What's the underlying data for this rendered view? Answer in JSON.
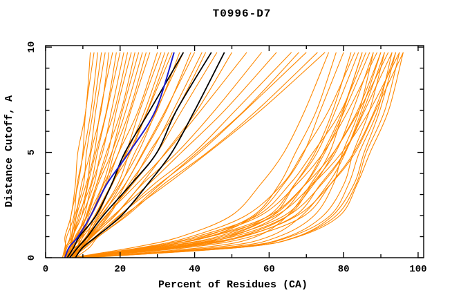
{
  "window": {
    "title": "T0996-D7"
  },
  "colors": {
    "background": "#ffffff",
    "axis": "#000000",
    "orange_curve": "#ff8800",
    "black_curve": "#000000",
    "blue_curve": "#1a1acc"
  },
  "chart_data": {
    "type": "line",
    "title": "T0996-D7",
    "xlabel": "Percent of Residues (CA)",
    "ylabel": "Distance Cutoff, A",
    "xlim": [
      0,
      101.5
    ],
    "ylim": [
      0,
      10.07
    ],
    "grid": false,
    "legend": "none",
    "x_major_ticks": [
      0,
      20,
      40,
      60,
      80,
      100
    ],
    "x_minor_ticks": [
      10,
      30,
      50,
      70,
      90
    ],
    "x_tick_labels": [
      "0",
      "20",
      "40",
      "60",
      "80",
      "100"
    ],
    "y_major_ticks": [
      0,
      5,
      10
    ],
    "y_minor_ticks": [
      1,
      2,
      3,
      4,
      6,
      7,
      8,
      9
    ],
    "y_tick_labels": [
      "0",
      "5",
      "10"
    ],
    "cutoffs": [
      0,
      0.5,
      1,
      2,
      3.5,
      5,
      7,
      9.75
    ],
    "blue_curve": [
      5.2,
      6.8,
      8.6,
      11.8,
      17,
      22,
      29.5,
      34.5
    ],
    "black_curves": [
      [
        5.8,
        7.5,
        9.5,
        13,
        18,
        21.5,
        27.5,
        37
      ],
      [
        6.5,
        8.5,
        11,
        16,
        22.5,
        30,
        35.5,
        44.5
      ],
      [
        8,
        10.5,
        13.5,
        20,
        28,
        33.5,
        40,
        48
      ]
    ],
    "orange_curves": [
      [
        4.5,
        5.1,
        5.6,
        6.6,
        7.9,
        9.0,
        10.4,
        12
      ],
      [
        5,
        5.6,
        6.2,
        7.2,
        8.6,
        9.8,
        11.2,
        13
      ],
      [
        4.5,
        5.3,
        5.9,
        7.2,
        8.8,
        10.2,
        11.9,
        14
      ],
      [
        5.5,
        6.3,
        6.9,
        8.2,
        9.8,
        11.2,
        12.9,
        15
      ],
      [
        5,
        5.9,
        6.7,
        8.1,
        10,
        11.6,
        13.6,
        16
      ],
      [
        6,
        6.9,
        7.7,
        9.1,
        11,
        12.6,
        14.6,
        17
      ],
      [
        5,
        6,
        7,
        8.6,
        10.9,
        12.8,
        15.1,
        18
      ],
      [
        5.5,
        6.6,
        7.5,
        9.3,
        11.6,
        13.6,
        16,
        19
      ],
      [
        5,
        6.2,
        7.3,
        9.2,
        11.8,
        14,
        16.7,
        20
      ],
      [
        6,
        7.2,
        8.3,
        10.2,
        12.8,
        15,
        17.7,
        21
      ],
      [
        5,
        6.4,
        7.6,
        9.8,
        12.7,
        15.2,
        18.3,
        22
      ],
      [
        6.5,
        7.8,
        9,
        11.1,
        13.9,
        16.4,
        19.4,
        23
      ],
      [
        5.5,
        7,
        8.3,
        10.7,
        13.8,
        16.6,
        19.9,
        24
      ],
      [
        7,
        8.4,
        9.7,
        12,
        15.1,
        17.8,
        21,
        25
      ],
      [
        5,
        6.7,
        8.2,
        10.9,
        14.5,
        17.6,
        21.4,
        26
      ],
      [
        6.5,
        8.1,
        9.6,
        12.2,
        15.7,
        18.8,
        22.5,
        27
      ],
      [
        6,
        7.8,
        9.3,
        12.2,
        15.9,
        19.2,
        23.2,
        28
      ],
      [
        5,
        7,
        8.8,
        12,
        16.3,
        20,
        24.5,
        30
      ],
      [
        7,
        8.9,
        10.6,
        13.7,
        17.8,
        21.4,
        25.7,
        31
      ],
      [
        6.5,
        8.5,
        10.3,
        13.6,
        18,
        21.8,
        26.4,
        32
      ],
      [
        7.5,
        9.5,
        11.3,
        14.6,
        19,
        22.8,
        27.4,
        33
      ],
      [
        5,
        7.3,
        9.4,
        13.1,
        18.1,
        22.4,
        27.6,
        34
      ],
      [
        7,
        9.3,
        11.4,
        15.1,
        20.1,
        24.4,
        29.6,
        36
      ],
      [
        6,
        8.5,
        10.7,
        14.7,
        20,
        24.6,
        30.2,
        37
      ],
      [
        7.5,
        10,
        12.2,
        16.3,
        21.7,
        26.4,
        32.1,
        39
      ],
      [
        5.5,
        8.3,
        10.7,
        15.2,
        21,
        26.2,
        32.4,
        40
      ],
      [
        7,
        9.8,
        12.3,
        16.8,
        22.8,
        28,
        34.3,
        42
      ],
      [
        6,
        9,
        11.6,
        16.4,
        22.7,
        28.2,
        34.9,
        43
      ],
      [
        5,
        8.3,
        11.2,
        16.5,
        23.5,
        29.6,
        37,
        46
      ],
      [
        6,
        9.5,
        12.6,
        18.3,
        25.8,
        32.4,
        40.3,
        50
      ],
      [
        6,
        8.9,
        11.3,
        16.6,
        24.2,
        32.4,
        42,
        54
      ],
      [
        7,
        10.1,
        12.6,
        18.2,
        26.4,
        35.1,
        45.3,
        58
      ],
      [
        6,
        9.4,
        12.2,
        18.3,
        27.3,
        36.8,
        48,
        62
      ],
      [
        7,
        10.5,
        13.5,
        20,
        29.4,
        39.5,
        51.3,
        66
      ],
      [
        8,
        11.6,
        14.6,
        21.2,
        30.8,
        41,
        53,
        68
      ],
      [
        6,
        9.8,
        13,
        20.1,
        30.3,
        41.2,
        54,
        70
      ],
      [
        7,
        11,
        14.3,
        21.5,
        32.1,
        43.3,
        56.5,
        73
      ],
      [
        6,
        10.1,
        13.6,
        21.2,
        32.2,
        44,
        57.8,
        75
      ],
      [
        7,
        24.3,
        36,
        49.8,
        58.1,
        63.6,
        69.8,
        76
      ],
      [
        8,
        29,
        43,
        55.6,
        62.6,
        67.5,
        72.4,
        78
      ],
      [
        7,
        28.9,
        43.5,
        56.6,
        63.9,
        69.1,
        74.2,
        80
      ],
      [
        8,
        34.6,
        48.7,
        60.5,
        67.2,
        72.4,
        76.8,
        82
      ],
      [
        7,
        26,
        38.9,
        54.1,
        63.2,
        69.3,
        76.2,
        83
      ],
      [
        8,
        30.8,
        46,
        59.7,
        67.3,
        72.6,
        77.9,
        84
      ],
      [
        7,
        35.1,
        49.9,
        62.4,
        69.4,
        74.9,
        79.5,
        85
      ],
      [
        9,
        43.2,
        56.1,
        65.2,
        71.3,
        75.9,
        80.4,
        85
      ],
      [
        8,
        27.5,
        40.8,
        56.4,
        65.7,
        72,
        79,
        86
      ],
      [
        7,
        31,
        47,
        61.4,
        69.4,
        75,
        80.6,
        87
      ],
      [
        8,
        36.8,
        52,
        64.8,
        72,
        77.6,
        82.4,
        88
      ],
      [
        9,
        48.5,
        62.7,
        72.2,
        76.9,
        80.1,
        84.1,
        88
      ],
      [
        7,
        27.5,
        41.4,
        57.8,
        67.7,
        74.2,
        81.6,
        89
      ],
      [
        8,
        32.6,
        49,
        63.8,
        72,
        77.7,
        83.4,
        90
      ],
      [
        10,
        46,
        59.6,
        69.2,
        75.6,
        80.4,
        85.2,
        90
      ],
      [
        7,
        37.2,
        53.2,
        66.6,
        74.2,
        80.1,
        85.1,
        91
      ],
      [
        10,
        50.5,
        65.1,
        74.8,
        79.7,
        82.9,
        87,
        91
      ],
      [
        8,
        29,
        43.3,
        60.1,
        70.2,
        76.9,
        84.4,
        92
      ],
      [
        9,
        51,
        66.1,
        76.2,
        81.2,
        84.6,
        88.8,
        93
      ],
      [
        7,
        32.8,
        50,
        65.5,
        74.1,
        80.1,
        86.1,
        93
      ],
      [
        8,
        39,
        55.3,
        69.1,
        76.8,
        82.8,
        88,
        94
      ],
      [
        11,
        52.5,
        67.4,
        77.4,
        82.4,
        85.7,
        89.9,
        94
      ],
      [
        7,
        29,
        44,
        61.6,
        72.1,
        79.2,
        87.1,
        95
      ],
      [
        10,
        52.5,
        67.8,
        78,
        83.1,
        86.5,
        90.8,
        95
      ],
      [
        8,
        34.4,
        52,
        67.8,
        76.6,
        82.8,
        89,
        96
      ],
      [
        9,
        52.5,
        68.2,
        78.6,
        83.8,
        87.3,
        91.7,
        96
      ]
    ]
  }
}
